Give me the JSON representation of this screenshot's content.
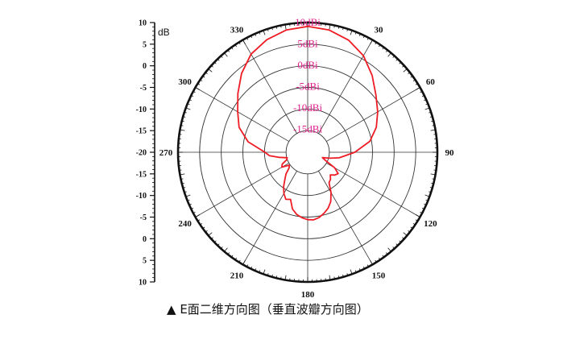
{
  "caption": {
    "marker": "▲",
    "text": "E面二维方向图（垂直波瓣方向图）"
  },
  "chart_data": {
    "type": "polar",
    "unit_label": "dB",
    "side_scale_ticks": [
      "10",
      "5",
      "0",
      "-5",
      "-10",
      "-15",
      "-20",
      "-15",
      "-10",
      "-5",
      "0",
      "5",
      "10"
    ],
    "angle_labels": [
      {
        "deg": 0,
        "label": ""
      },
      {
        "deg": 30,
        "label": "30"
      },
      {
        "deg": 60,
        "label": "60"
      },
      {
        "deg": 90,
        "label": "90"
      },
      {
        "deg": 120,
        "label": "120"
      },
      {
        "deg": 150,
        "label": "150"
      },
      {
        "deg": 180,
        "label": "180"
      },
      {
        "deg": 210,
        "label": "210"
      },
      {
        "deg": 240,
        "label": "240"
      },
      {
        "deg": 270,
        "label": "270"
      },
      {
        "deg": 300,
        "label": "300"
      },
      {
        "deg": 330,
        "label": "330"
      }
    ],
    "ring_labels": [
      "10dBi",
      "5dBi",
      "0dBi",
      "-5dBi",
      "-10dBi",
      "-15dBi"
    ],
    "r_range": [
      -20,
      10
    ],
    "ring_values": [
      10,
      5,
      0,
      -5,
      -10,
      -15
    ],
    "colors": {
      "pattern": "#ee1c25",
      "ring_label": "#e0218a",
      "grid": "#222222"
    },
    "series": [
      {
        "angles_deg": [
          0,
          10,
          20,
          30,
          40,
          50,
          60,
          70,
          80,
          90,
          95,
          100,
          105,
          110,
          115,
          120,
          125,
          130,
          135,
          140,
          145,
          150,
          155,
          160,
          165,
          170,
          175,
          180,
          185,
          190,
          195,
          200,
          205,
          210,
          215,
          220,
          225,
          230,
          235,
          240,
          245,
          250,
          255,
          260,
          265,
          270,
          280,
          290,
          300,
          310,
          320,
          330,
          340,
          350
        ],
        "gain_db": [
          9.1,
          8.7,
          7.6,
          5.8,
          3.2,
          0.6,
          -1.3,
          -3.1,
          -5.4,
          -9.1,
          -11.2,
          -12.6,
          -14.7,
          -16.4,
          -15.4,
          -12.8,
          -11.4,
          -11.8,
          -12.6,
          -11.8,
          -11.4,
          -9.2,
          -7.4,
          -6.2,
          -5.4,
          -4.7,
          -4.3,
          -4.4,
          -4.8,
          -5.4,
          -6.4,
          -8.4,
          -8.0,
          -9.0,
          -10.3,
          -11.8,
          -12.9,
          -14.4,
          -14.8,
          -13.1,
          -13.5,
          -14.8,
          -15.1,
          -13.2,
          -11.1,
          -10.1,
          -6.0,
          -3.1,
          -1.3,
          1.1,
          3.8,
          6.2,
          7.7,
          8.7
        ]
      }
    ]
  }
}
